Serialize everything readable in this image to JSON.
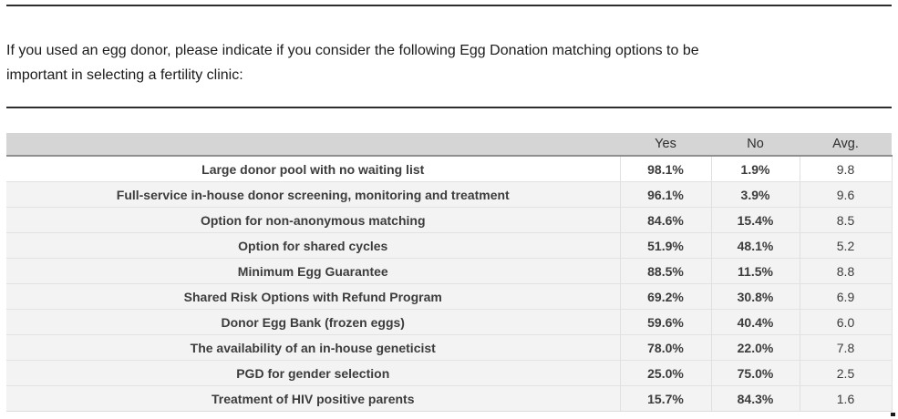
{
  "question": {
    "line1": "If you used an egg donor, please indicate if you consider the following Egg Donation matching options to be",
    "line2": "important in selecting a fertility clinic:"
  },
  "table": {
    "headers": {
      "label": "",
      "yes": "Yes",
      "no": "No",
      "avg": "Avg."
    },
    "rows": [
      {
        "label": "Large donor pool with no waiting list",
        "yes": "98.1%",
        "no": "1.9%",
        "avg": "9.8"
      },
      {
        "label": "Full-service in-house donor screening, monitoring and treatment",
        "yes": "96.1%",
        "no": "3.9%",
        "avg": "9.6"
      },
      {
        "label": "Option for non-anonymous matching",
        "yes": "84.6%",
        "no": "15.4%",
        "avg": "8.5"
      },
      {
        "label": "Option for shared cycles",
        "yes": "51.9%",
        "no": "48.1%",
        "avg": "5.2"
      },
      {
        "label": "Minimum Egg Guarantee",
        "yes": "88.5%",
        "no": "11.5%",
        "avg": "8.8"
      },
      {
        "label": "Shared Risk Options with Refund Program",
        "yes": "69.2%",
        "no": "30.8%",
        "avg": "6.9"
      },
      {
        "label": "Donor Egg Bank (frozen eggs)",
        "yes": "59.6%",
        "no": "40.4%",
        "avg": "6.0"
      },
      {
        "label": "The availability of an in-house geneticist",
        "yes": "78.0%",
        "no": "22.0%",
        "avg": "7.8"
      },
      {
        "label": "PGD for gender selection",
        "yes": "25.0%",
        "no": "75.0%",
        "avg": "2.5"
      },
      {
        "label": "Treatment of HIV positive parents",
        "yes": "15.7%",
        "no": "84.3%",
        "avg": "1.6"
      }
    ]
  },
  "colors": {
    "header_background": "#d5d5d5",
    "row_background": "#f3f3f3",
    "first_row_background": "#ffffff",
    "header_border": "#8f8f8f",
    "rule_color": "#2d2d2d",
    "text_color": "#3c3c3c"
  }
}
